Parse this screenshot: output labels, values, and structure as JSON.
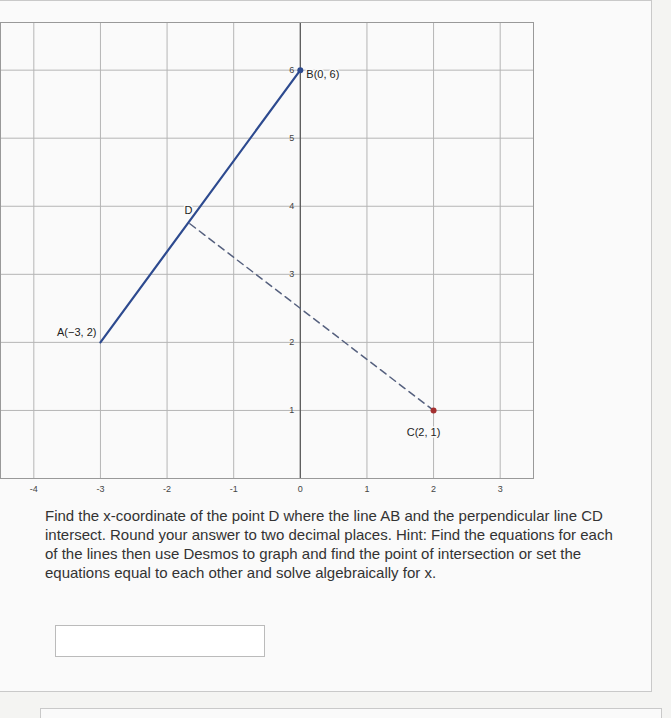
{
  "chart_data": {
    "type": "line",
    "xlim": [
      -4.5,
      3.5
    ],
    "xticks": [
      -4,
      -3,
      -2,
      -1,
      0,
      1,
      2,
      3
    ],
    "ylim": [
      0,
      6.7
    ],
    "yticks": [
      1,
      2,
      3,
      4,
      5,
      6
    ],
    "grid": true,
    "series": [
      {
        "x": [
          -3,
          0
        ],
        "values": [
          2,
          6
        ],
        "color": "#2d4a8f",
        "line_style": "solid"
      },
      {
        "x": [
          2,
          -1.68
        ],
        "values": [
          1,
          3.76
        ],
        "color": "#55607e",
        "line_style": "dashed"
      }
    ],
    "points": [
      {
        "label": "A(−3, 2)",
        "x": -3,
        "y": 2,
        "color": "#2d4a8f"
      },
      {
        "label": "B(0, 6)",
        "x": 0,
        "y": 6,
        "color": "#2d4a8f",
        "marker": "circle"
      },
      {
        "label": "C(2, 1)",
        "x": 2,
        "y": 1,
        "color": "#a33030",
        "marker": "circle"
      },
      {
        "label": "D",
        "x": -1.68,
        "y": 3.76,
        "color": "#2d4a8f"
      }
    ]
  },
  "question": "Find the x-coordinate of the point D where the line AB and the perpendicular line CD intersect. Round your answer to two decimal places. Hint: Find the equations for each of the lines then use Desmos to graph and find the point of intersection or set the equations equal to each other and solve algebraically for x."
}
